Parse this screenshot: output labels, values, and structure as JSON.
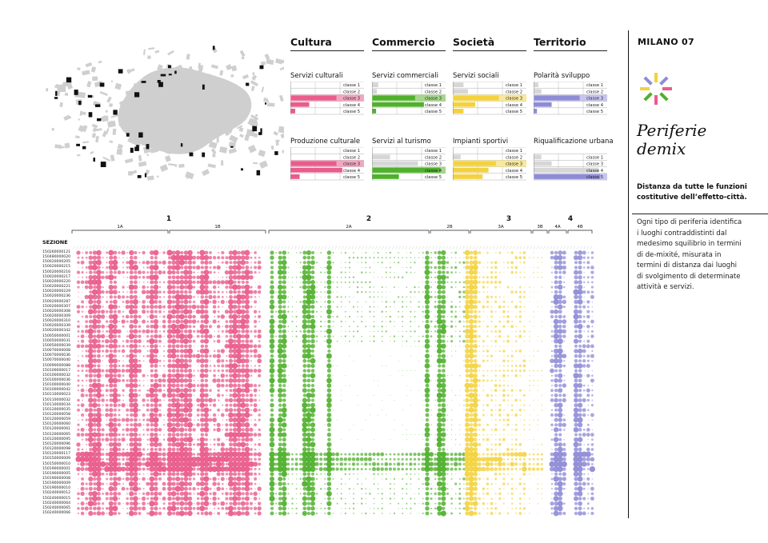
{
  "categories": [
    {
      "name": "Cultura",
      "color": "#e95c8b"
    },
    {
      "name": "Commercio",
      "color": "#4fb02c"
    },
    {
      "name": "Società",
      "color": "#f3d23e"
    },
    {
      "name": "Territorio",
      "color": "#8f8cd6"
    }
  ],
  "mini_charts": [
    {
      "title": "Servizi culturali",
      "color": "#e95c8b",
      "light": "#f1a7bf",
      "classes": [
        "classe 1",
        "classe 2",
        "classe 3",
        "classe 4",
        "classe 5"
      ],
      "highlight": 2,
      "values": [
        0,
        0,
        62,
        25,
        6
      ]
    },
    {
      "title": "Servizi commerciali",
      "color": "#4fb02c",
      "light": "#a6d68d",
      "classes": [
        "classe 1",
        "classe 2",
        "classe 3",
        "classe 4",
        "classe 5"
      ],
      "highlight": 2,
      "values": [
        8,
        6,
        58,
        70,
        5
      ]
    },
    {
      "title": "Servizi sociali",
      "color": "#f3d23e",
      "light": "#f9e89a",
      "classes": [
        "classe 1",
        "classe 2",
        "classe 3",
        "classe 4",
        "classe 5"
      ],
      "highlight": 2,
      "values": [
        14,
        20,
        62,
        30,
        14
      ]
    },
    {
      "title": "Polarità sviluppo",
      "color": "#8f8cd6",
      "light": "#c7c5ec",
      "classes": [
        "classe 1",
        "classe 2",
        "classe 3",
        "classe 4",
        "classe 5"
      ],
      "highlight": 2,
      "values": [
        6,
        10,
        62,
        24,
        4
      ]
    },
    {
      "title": "Produzione culturale",
      "color": "#e95c8b",
      "light": "#f1a7bf",
      "classes": [
        "classe 1",
        "classe 2",
        "classe 3",
        "classe 4",
        "classe 5"
      ],
      "highlight": 2,
      "values": [
        0,
        0,
        62,
        70,
        12
      ]
    },
    {
      "title": "Servizi al turismo",
      "color": "#4fb02c",
      "light": "#a6d68d",
      "classes": [
        "classe 1",
        "classe 2",
        "classe 3",
        "classe 4",
        "classe 5"
      ],
      "highlight": 3,
      "values": [
        0,
        24,
        62,
        92,
        36
      ]
    },
    {
      "title": "Impianti sportivi",
      "color": "#f3d23e",
      "light": "#f9e89a",
      "classes": [
        "classe 1",
        "classe 2",
        "classe 3",
        "classe 4",
        "classe 5"
      ],
      "highlight": 2,
      "values": [
        0,
        10,
        58,
        48,
        40
      ]
    },
    {
      "title": "Riqualificazione urbana",
      "color": "#8f8cd6",
      "light": "#c7c5ec",
      "classes": [
        "classe 1",
        "classe 3",
        "classe 4",
        "classe 5"
      ],
      "highlight": 3,
      "values": [
        10,
        24,
        88,
        90
      ]
    }
  ],
  "sidebar": {
    "brand": "MILANO 07",
    "title_line1": "Periferie",
    "title_line2": "demix",
    "subtitle_line1": "Distanza da tutte le funzioni",
    "subtitle_line2": "costitutive dell’effetto-città.",
    "text_lines": [
      "Ogni tipo di periferia identifica",
      "i luoghi contraddistinti dal",
      "medesimo squilibrio in termini",
      "di de-mixité, misurata in",
      "termini di distanza dai luoghi",
      "di svolgimento di determinate",
      "attività e servizi."
    ],
    "logo_colors": [
      "#e95c8b",
      "#4fb02c",
      "#f3d23e",
      "#8f8cd6"
    ]
  },
  "matrix": {
    "header": "SEZIONE",
    "groups": [
      {
        "label": "1",
        "subs": [
          {
            "label": "1A"
          },
          {
            "label": "1B"
          }
        ]
      },
      {
        "label": "2",
        "subs": [
          {
            "label": "2A"
          },
          {
            "label": "2B"
          }
        ]
      },
      {
        "label": "3",
        "subs": [
          {
            "label": "3A"
          },
          {
            "label": "3B"
          }
        ]
      },
      {
        "label": "4",
        "subs": [
          {
            "label": "4A"
          },
          {
            "label": "4B"
          }
        ]
      }
    ],
    "row_codes": [
      "150260000121",
      "150480000020",
      "150020000205",
      "150020000215",
      "150020000216",
      "150020000217",
      "150020000220",
      "150020000221",
      "150020000229",
      "150020000236",
      "150020000287",
      "150020000307",
      "150020000308",
      "150020000309",
      "150020000310",
      "150020000339",
      "150020000342",
      "150050000001",
      "150050000031",
      "150050000039",
      "150070000008",
      "150070000036",
      "150070000040",
      "150090000088",
      "150100000017",
      "150100000032",
      "150100000036",
      "150100000040",
      "150100000042",
      "150110000023",
      "150110000032",
      "150110000034",
      "150120000035",
      "150120000058",
      "150120000059",
      "150120000060",
      "150120000061",
      "150120000065",
      "150120000095",
      "150120000096",
      "150120000098",
      "150120000117",
      "150150000009",
      "150150000010",
      "150190000001",
      "150190000005",
      "150190000008",
      "150190000009",
      "150190000010",
      "150240000012",
      "150240000015",
      "150240000064",
      "150240000065",
      "150240000066"
    ]
  }
}
